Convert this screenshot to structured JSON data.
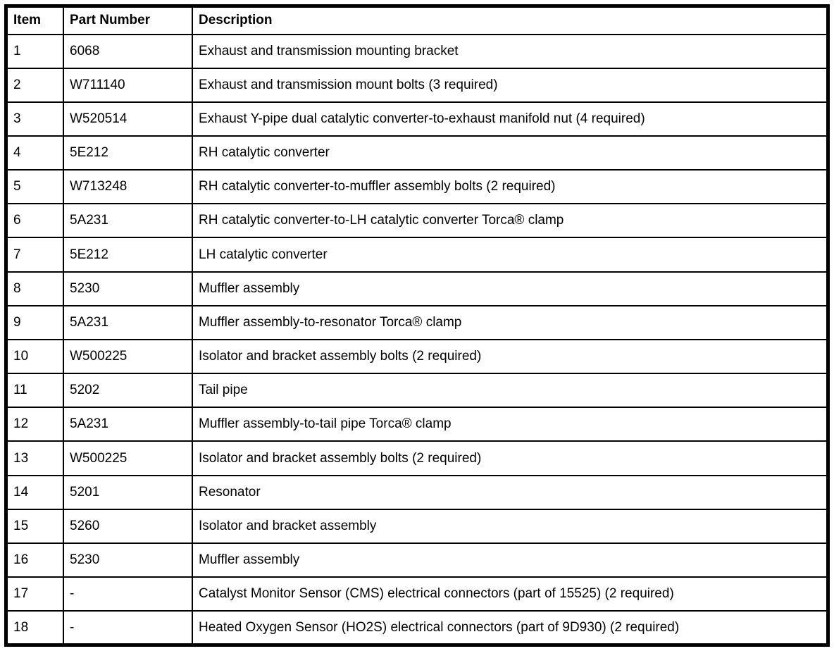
{
  "table": {
    "columns": [
      "Item",
      "Part Number",
      "Description"
    ],
    "rows": [
      {
        "item": "1",
        "part": "6068",
        "desc": "Exhaust and transmission mounting bracket"
      },
      {
        "item": "2",
        "part": "W711140",
        "desc": "Exhaust and transmission mount bolts (3 required)"
      },
      {
        "item": "3",
        "part": "W520514",
        "desc": "Exhaust Y-pipe dual catalytic converter-to-exhaust manifold nut (4 required)"
      },
      {
        "item": "4",
        "part": "5E212",
        "desc": "RH catalytic converter"
      },
      {
        "item": "5",
        "part": "W713248",
        "desc": "RH catalytic converter-to-muffler assembly bolts (2 required)"
      },
      {
        "item": "6",
        "part": "5A231",
        "desc": "RH catalytic converter-to-LH catalytic converter Torca® clamp"
      },
      {
        "item": "7",
        "part": "5E212",
        "desc": "LH catalytic converter"
      },
      {
        "item": "8",
        "part": "5230",
        "desc": "Muffler assembly"
      },
      {
        "item": "9",
        "part": "5A231",
        "desc": "Muffler assembly-to-resonator Torca® clamp"
      },
      {
        "item": "10",
        "part": "W500225",
        "desc": "Isolator and bracket assembly bolts (2 required)"
      },
      {
        "item": "11",
        "part": "5202",
        "desc": "Tail pipe"
      },
      {
        "item": "12",
        "part": "5A231",
        "desc": "Muffler assembly-to-tail pipe Torca® clamp"
      },
      {
        "item": "13",
        "part": "W500225",
        "desc": "Isolator and bracket assembly bolts (2 required)"
      },
      {
        "item": "14",
        "part": "5201",
        "desc": "Resonator"
      },
      {
        "item": "15",
        "part": "5260",
        "desc": "Isolator and bracket assembly"
      },
      {
        "item": "16",
        "part": "5230",
        "desc": "Muffler assembly"
      },
      {
        "item": "17",
        "part": "-",
        "desc": "Catalyst Monitor Sensor (CMS) electrical connectors (part of 15525) (2 required)"
      },
      {
        "item": "18",
        "part": "-",
        "desc": "Heated Oxygen Sensor (HO2S) electrical connectors (part of 9D930) (2 required)"
      }
    ]
  },
  "colors": {
    "text": "#000000",
    "border": "#000000",
    "background": "#ffffff"
  }
}
